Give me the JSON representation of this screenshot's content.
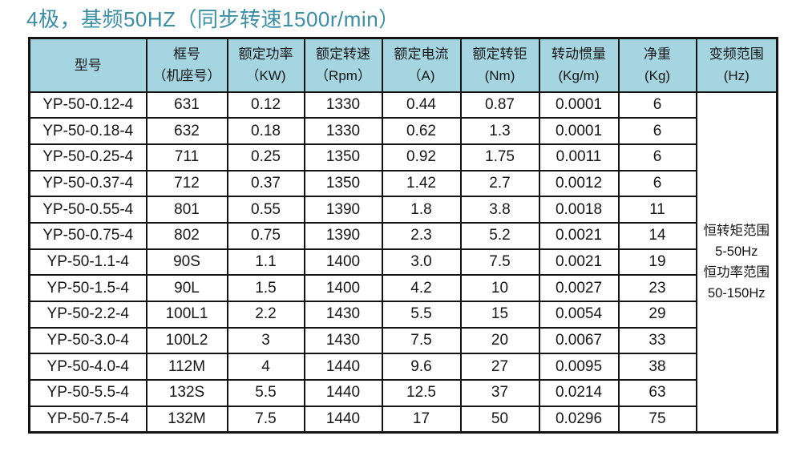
{
  "title": "4极，基频50HZ（同步转速1500r/min）",
  "colors": {
    "title_text": "#3a8fa6",
    "header_background": "#a4d5e0",
    "grid_border": "#141414"
  },
  "table": {
    "headers": [
      {
        "line1": "型号",
        "line2": ""
      },
      {
        "line1": "框号",
        "line2": "（机座号）"
      },
      {
        "line1": "额定功率",
        "line2": "（KW)"
      },
      {
        "line1": "额定转速",
        "line2": "（Rpm）"
      },
      {
        "line1": "额定电流",
        "line2": "（A)"
      },
      {
        "line1": "额定转钜",
        "line2": "(Nm)"
      },
      {
        "line1": "转动惯量",
        "line2": "(Kg/m)"
      },
      {
        "line1": "净重",
        "line2": "(Kg)"
      },
      {
        "line1": "变频范围",
        "line2": "(Hz)"
      }
    ],
    "rows": [
      [
        "YP-50-0.12-4",
        "631",
        "0.12",
        "1330",
        "0.44",
        "0.87",
        "0.0001",
        "6"
      ],
      [
        "YP-50-0.18-4",
        "632",
        "0.18",
        "1330",
        "0.62",
        "1.3",
        "0.0001",
        "6"
      ],
      [
        "YP-50-0.25-4",
        "711",
        "0.25",
        "1350",
        "0.92",
        "1.75",
        "0.0011",
        "6"
      ],
      [
        "YP-50-0.37-4",
        "712",
        "0.37",
        "1350",
        "1.42",
        "2.7",
        "0.0012",
        "6"
      ],
      [
        "YP-50-0.55-4",
        "801",
        "0.55",
        "1390",
        "1.8",
        "3.8",
        "0.0018",
        "11"
      ],
      [
        "YP-50-0.75-4",
        "802",
        "0.75",
        "1390",
        "2.3",
        "5.2",
        "0.0021",
        "14"
      ],
      [
        "YP-50-1.1-4",
        "90S",
        "1.1",
        "1400",
        "3.0",
        "7.5",
        "0.0021",
        "19"
      ],
      [
        "YP-50-1.5-4",
        "90L",
        "1.5",
        "1400",
        "4.2",
        "10",
        "0.0027",
        "23"
      ],
      [
        "YP-50-2.2-4",
        "100L1",
        "2.2",
        "1430",
        "5.5",
        "15",
        "0.0054",
        "29"
      ],
      [
        "YP-50-3.0-4",
        "100L2",
        "3",
        "1430",
        "7.5",
        "20",
        "0.0067",
        "33"
      ],
      [
        "YP-50-4.0-4",
        "112M",
        "4",
        "1440",
        "9.6",
        "27",
        "0.0095",
        "38"
      ],
      [
        "YP-50-5.5-4",
        "132S",
        "5.5",
        "1440",
        "12.5",
        "37",
        "0.0214",
        "63"
      ],
      [
        "YP-50-7.5-4",
        "132M",
        "7.5",
        "1440",
        "17",
        "50",
        "0.0296",
        "75"
      ]
    ],
    "frequency_range_lines": [
      "恒转矩范围",
      "5-50Hz",
      "恒功率范围",
      "50-150Hz"
    ]
  }
}
